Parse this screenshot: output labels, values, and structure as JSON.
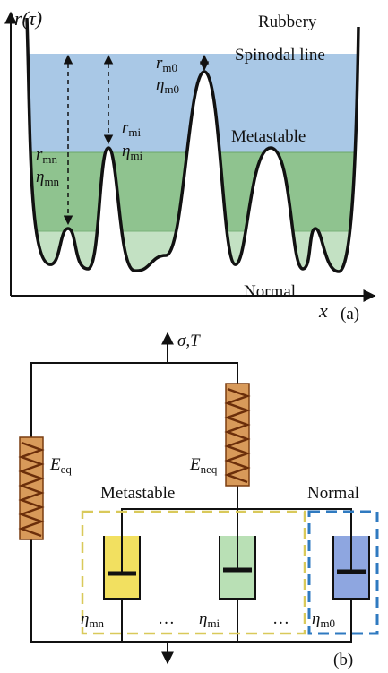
{
  "panel_a": {
    "y_axis_label": "r(τ)",
    "x_axis_label": "x",
    "panel_label": "(a)",
    "regions": [
      "Rubbery",
      "Spinodal line",
      "Metastable",
      "Normal"
    ],
    "annotations": [
      {
        "symbol": "r",
        "sub": "m0"
      },
      {
        "symbol": "η",
        "sub": "m0"
      },
      {
        "symbol": "r",
        "sub": "mi"
      },
      {
        "symbol": "η",
        "sub": "mi"
      },
      {
        "symbol": "r",
        "sub": "mn"
      },
      {
        "symbol": "η",
        "sub": "mn"
      }
    ]
  },
  "panel_b": {
    "load": "σ,T",
    "panel_label": "(b)",
    "springs": [
      {
        "symbol": "E",
        "sub": "eq"
      },
      {
        "symbol": "E",
        "sub": "neq"
      }
    ],
    "groups": [
      "Metastable",
      "Normal"
    ],
    "dashpots": [
      {
        "symbol": "η",
        "sub": "mn"
      },
      {
        "symbol": "η",
        "sub": "mi"
      },
      {
        "symbol": "η",
        "sub": "m0"
      }
    ],
    "ellipses": [
      "…",
      "…"
    ]
  }
}
